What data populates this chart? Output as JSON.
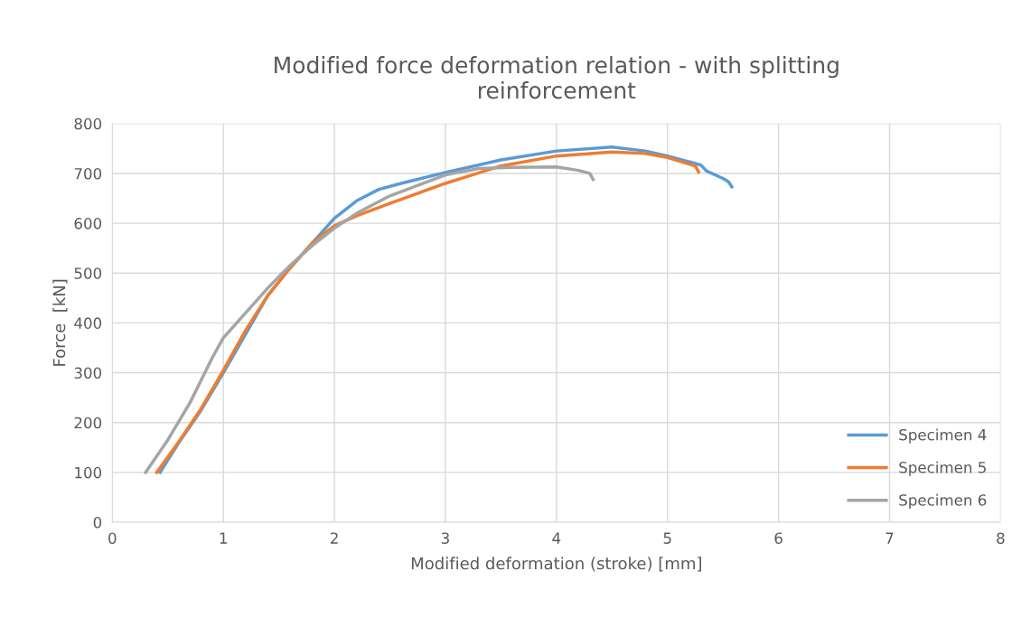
{
  "chart_data": {
    "type": "line",
    "title": "Modified force deformation relation - with splitting\nreinforcement",
    "xlabel": "Modified deformation (stroke) [mm]",
    "ylabel": "Force  [kN]",
    "xlim": [
      0,
      8
    ],
    "xticks": [
      0,
      1,
      2,
      3,
      4,
      5,
      6,
      7,
      8
    ],
    "ylim": [
      0,
      800
    ],
    "yticks": [
      0,
      100,
      200,
      300,
      400,
      500,
      600,
      700,
      800
    ],
    "grid": true,
    "legend": "right",
    "marker": "none",
    "line_style": "solid",
    "series": [
      {
        "name": "Specimen 4",
        "color": "#5b9bd5",
        "x": [
          0.43,
          0.6,
          0.8,
          1.0,
          1.4,
          1.6,
          1.8,
          2.0,
          2.2,
          2.4,
          2.6,
          3.0,
          3.5,
          4.0,
          4.5,
          4.8,
          5.0,
          5.3,
          5.35,
          5.5,
          5.55,
          5.58
        ],
        "values": [
          100,
          160,
          225,
          300,
          455,
          510,
          560,
          610,
          645,
          668,
          680,
          702,
          727,
          745,
          753,
          745,
          735,
          717,
          705,
          690,
          683,
          673
        ]
      },
      {
        "name": "Specimen 5",
        "color": "#ed7d31",
        "x": [
          0.4,
          0.6,
          0.8,
          1.0,
          1.2,
          1.4,
          1.6,
          1.8,
          2.0,
          2.2,
          2.5,
          3.0,
          3.5,
          4.0,
          4.5,
          4.8,
          5.0,
          5.25,
          5.28
        ],
        "values": [
          100,
          162,
          228,
          305,
          385,
          455,
          510,
          560,
          595,
          615,
          640,
          680,
          715,
          735,
          743,
          740,
          732,
          715,
          703
        ]
      },
      {
        "name": "Specimen 6",
        "color": "#a5a5a5",
        "x": [
          0.3,
          0.5,
          0.7,
          0.9,
          1.0,
          1.2,
          1.4,
          1.6,
          1.8,
          2.0,
          2.2,
          2.5,
          3.0,
          3.3,
          3.6,
          4.0,
          4.2,
          4.3,
          4.33
        ],
        "values": [
          100,
          165,
          240,
          330,
          370,
          420,
          470,
          515,
          555,
          590,
          620,
          655,
          697,
          710,
          712,
          713,
          706,
          700,
          688
        ]
      }
    ]
  }
}
